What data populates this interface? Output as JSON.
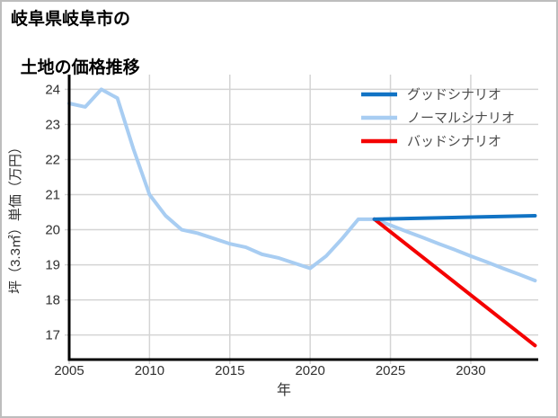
{
  "page": {
    "background": "#ffffff",
    "border_color": "#bdbdbd"
  },
  "colors": {
    "grid": "#d4d4d4",
    "axis": "#000000",
    "tick_text": "#303030",
    "axis_label_text": "#303030",
    "legend_text": "#4d4d4d",
    "title_text": "#000000"
  },
  "chart_data": {
    "type": "line",
    "title_lines": [
      "岐阜県岐阜市の",
      "土地の価格推移"
    ],
    "xlabel": "年",
    "ylabel": "坪（3.3㎡）単価（万円）",
    "xticks": [
      2005,
      2010,
      2015,
      2020,
      2025,
      2030
    ],
    "yticks": [
      17,
      18,
      19,
      20,
      21,
      22,
      23,
      24
    ],
    "xlim": [
      2005,
      2034.2
    ],
    "ylim": [
      16.3,
      24.42
    ],
    "grid": true,
    "legend": {
      "position": "upper-right",
      "entries": [
        {
          "label": "グッドシナリオ",
          "color": "#1173c4"
        },
        {
          "label": "ノーマルシナリオ",
          "color": "#a8cdf2"
        },
        {
          "label": "バッドシナリオ",
          "color": "#f40000"
        }
      ]
    },
    "series": [
      {
        "name": "ノーマルシナリオ",
        "color": "#a8cdf2",
        "x": [
          2005,
          2006,
          2007,
          2008,
          2009,
          2010,
          2011,
          2012,
          2013,
          2014,
          2015,
          2016,
          2017,
          2018,
          2019,
          2020,
          2021,
          2022,
          2023,
          2024,
          2025,
          2026,
          2027,
          2028,
          2029,
          2030,
          2031,
          2032,
          2033,
          2034
        ],
        "values": [
          23.6,
          23.5,
          24.0,
          23.75,
          22.3,
          21.0,
          20.4,
          20.0,
          19.9,
          19.75,
          19.6,
          19.5,
          19.3,
          19.2,
          19.05,
          18.9,
          19.25,
          19.75,
          20.3,
          20.3,
          20.13,
          19.95,
          19.78,
          19.6,
          19.43,
          19.25,
          19.08,
          18.9,
          18.73,
          18.55
        ]
      },
      {
        "name": "バッドシナリオ",
        "color": "#f40000",
        "x": [
          2024,
          2034
        ],
        "values": [
          20.3,
          16.7
        ]
      },
      {
        "name": "グッドシナリオ",
        "color": "#1173c4",
        "x": [
          2024,
          2034
        ],
        "values": [
          20.3,
          20.4
        ]
      }
    ]
  }
}
